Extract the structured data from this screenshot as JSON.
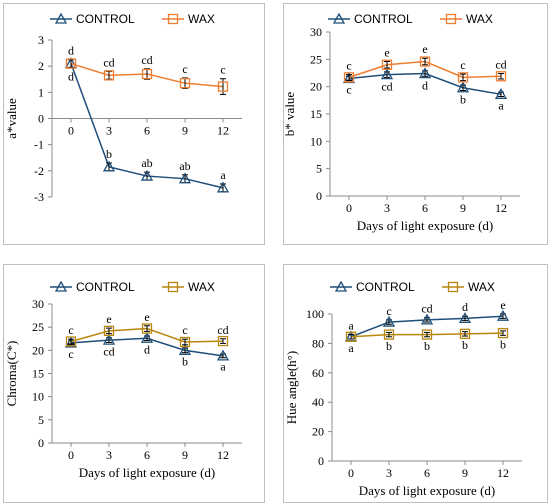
{
  "chart_data": [
    {
      "type": "line",
      "x": [
        0,
        3,
        6,
        9,
        12
      ],
      "xticks": [
        "0",
        "3",
        "6",
        "9",
        "12"
      ],
      "xlabel": "",
      "ylabel": "a*value",
      "ylim": [
        -3,
        3
      ],
      "yticks": [
        3,
        2,
        1,
        0,
        -1,
        -2,
        -3
      ],
      "x_axis_at": 0,
      "legend": "top",
      "series": [
        {
          "name": "CONTROL",
          "color": "#1f4e79",
          "marker": "triangle",
          "values": [
            2.1,
            -1.85,
            -2.2,
            -2.3,
            -2.65
          ],
          "errors": [
            0.15,
            0.15,
            0.15,
            0.15,
            0.15
          ],
          "labels": [
            "d",
            "b",
            "ab",
            "ab",
            "a"
          ],
          "label_pos": [
            "below",
            "above",
            "above",
            "above",
            "above"
          ]
        },
        {
          "name": "WAX",
          "color": "#ed7d31",
          "marker": "square",
          "values": [
            2.1,
            1.65,
            1.7,
            1.35,
            1.22
          ],
          "errors": [
            0.15,
            0.15,
            0.2,
            0.2,
            0.3
          ],
          "labels": [
            "d",
            "cd",
            "cd",
            "c",
            "c"
          ],
          "label_pos": [
            "above",
            "above",
            "above",
            "above",
            "above"
          ]
        }
      ]
    },
    {
      "type": "line",
      "x": [
        0,
        3,
        6,
        9,
        12
      ],
      "xticks": [
        "0",
        "3",
        "6",
        "9",
        "12"
      ],
      "xlabel": "Days of light exposure (d)",
      "ylabel": "b* value",
      "ylim": [
        0,
        30
      ],
      "yticks": [
        30,
        25,
        20,
        15,
        10,
        5,
        0
      ],
      "x_axis_at": 0,
      "legend": "top",
      "series": [
        {
          "name": "CONTROL",
          "color": "#1f4e79",
          "marker": "triangle",
          "values": [
            21.5,
            22.2,
            22.4,
            19.8,
            18.6
          ],
          "errors": [
            0.4,
            0.5,
            0.5,
            0.5,
            0.4
          ],
          "labels": [
            "c",
            "cd",
            "d",
            "b",
            "a"
          ],
          "label_pos": [
            "below",
            "below",
            "below",
            "below",
            "below"
          ]
        },
        {
          "name": "WAX",
          "color": "#ed7d31",
          "marker": "square",
          "values": [
            21.7,
            24.0,
            24.6,
            21.7,
            21.9
          ],
          "errors": [
            0.5,
            0.6,
            0.6,
            0.6,
            0.5
          ],
          "labels": [
            "c",
            "e",
            "e",
            "c",
            "cd"
          ],
          "label_pos": [
            "above",
            "above",
            "above",
            "above",
            "above"
          ]
        }
      ]
    },
    {
      "type": "line",
      "x": [
        0,
        3,
        6,
        9,
        12
      ],
      "xticks": [
        "0",
        "3",
        "6",
        "9",
        "12"
      ],
      "xlabel": "Days of light exposure (d)",
      "ylabel": "Chroma(C*)",
      "ylim": [
        0,
        30
      ],
      "yticks": [
        30,
        25,
        20,
        15,
        10,
        5,
        0
      ],
      "x_axis_at": 0,
      "legend": "top",
      "series": [
        {
          "name": "CONTROL",
          "color": "#1f4e79",
          "marker": "triangle",
          "values": [
            21.6,
            22.2,
            22.6,
            20.0,
            18.8
          ],
          "errors": [
            0.4,
            0.5,
            0.5,
            0.5,
            0.4
          ],
          "labels": [
            "c",
            "cd",
            "d",
            "b",
            "a"
          ],
          "label_pos": [
            "below",
            "below",
            "below",
            "below",
            "below"
          ]
        },
        {
          "name": "WAX",
          "color": "#b8860b",
          "marker": "square",
          "values": [
            21.9,
            24.2,
            24.7,
            21.8,
            22.0
          ],
          "errors": [
            0.5,
            0.6,
            0.6,
            0.6,
            0.5
          ],
          "labels": [
            "c",
            "e",
            "e",
            "c",
            "cd"
          ],
          "label_pos": [
            "above",
            "above",
            "above",
            "above",
            "above"
          ]
        }
      ]
    },
    {
      "type": "line",
      "x": [
        0,
        3,
        6,
        9,
        12
      ],
      "xticks": [
        "0",
        "3",
        "6",
        "9",
        "12"
      ],
      "xlabel": "Days of light exposure (d)",
      "ylabel": "Hue angle(h°)",
      "ylim": [
        0,
        100
      ],
      "yticks": [
        100,
        80,
        60,
        40,
        20,
        0
      ],
      "x_axis_at": 0,
      "legend": "top",
      "series": [
        {
          "name": "CONTROL",
          "color": "#1f4e79",
          "marker": "triangle",
          "values": [
            84.5,
            94.5,
            96.0,
            97.0,
            98.5
          ],
          "errors": [
            1.5,
            1.5,
            1.5,
            1.5,
            1.5
          ],
          "labels": [
            "a",
            "c",
            "cd",
            "d",
            "e"
          ],
          "label_pos": [
            "above",
            "above",
            "above",
            "above",
            "above"
          ]
        },
        {
          "name": "WAX",
          "color": "#b8860b",
          "marker": "square",
          "values": [
            84.5,
            86.0,
            86.0,
            86.5,
            87.0
          ],
          "errors": [
            1.5,
            1.5,
            1.5,
            1.5,
            1.5
          ],
          "labels": [
            "a",
            "b",
            "b",
            "b",
            "b"
          ],
          "label_pos": [
            "below",
            "below",
            "below",
            "below",
            "below"
          ]
        }
      ]
    }
  ]
}
